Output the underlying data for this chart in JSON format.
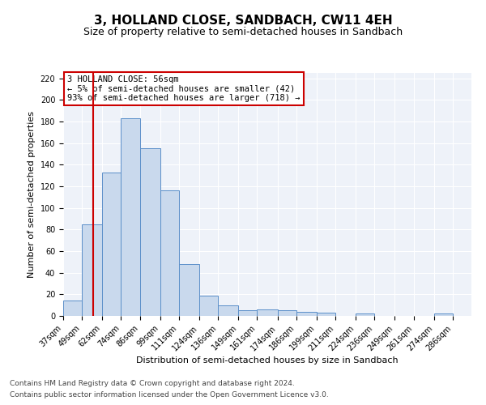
{
  "title": "3, HOLLAND CLOSE, SANDBACH, CW11 4EH",
  "subtitle": "Size of property relative to semi-detached houses in Sandbach",
  "xlabel": "Distribution of semi-detached houses by size in Sandbach",
  "ylabel": "Number of semi-detached properties",
  "footnote1": "Contains HM Land Registry data © Crown copyright and database right 2024.",
  "footnote2": "Contains public sector information licensed under the Open Government Licence v3.0.",
  "annotation_title": "3 HOLLAND CLOSE: 56sqm",
  "annotation_line2": "← 5% of semi-detached houses are smaller (42)",
  "annotation_line3": "93% of semi-detached houses are larger (718) →",
  "bar_color": "#c9d9ed",
  "bar_edge_color": "#5b8fc9",
  "vline_color": "#cc0000",
  "vline_x": 56,
  "background_color": "#eef2f9",
  "categories": [
    "37sqm",
    "49sqm",
    "62sqm",
    "74sqm",
    "86sqm",
    "99sqm",
    "111sqm",
    "124sqm",
    "136sqm",
    "149sqm",
    "161sqm",
    "174sqm",
    "186sqm",
    "199sqm",
    "211sqm",
    "224sqm",
    "236sqm",
    "249sqm",
    "261sqm",
    "274sqm",
    "286sqm"
  ],
  "bin_edges": [
    37,
    49,
    62,
    74,
    86,
    99,
    111,
    124,
    136,
    149,
    161,
    174,
    186,
    199,
    211,
    224,
    236,
    249,
    261,
    274,
    286,
    298
  ],
  "values": [
    14,
    85,
    133,
    183,
    155,
    116,
    48,
    19,
    10,
    5,
    6,
    5,
    4,
    3,
    0,
    2,
    0,
    0,
    0,
    2,
    0
  ],
  "ylim": [
    0,
    225
  ],
  "yticks": [
    0,
    20,
    40,
    60,
    80,
    100,
    120,
    140,
    160,
    180,
    200,
    220
  ],
  "grid_color": "#ffffff",
  "title_fontsize": 11,
  "subtitle_fontsize": 9,
  "axis_label_fontsize": 8,
  "tick_fontsize": 7,
  "annotation_fontsize": 7.5,
  "footnote_fontsize": 6.5
}
